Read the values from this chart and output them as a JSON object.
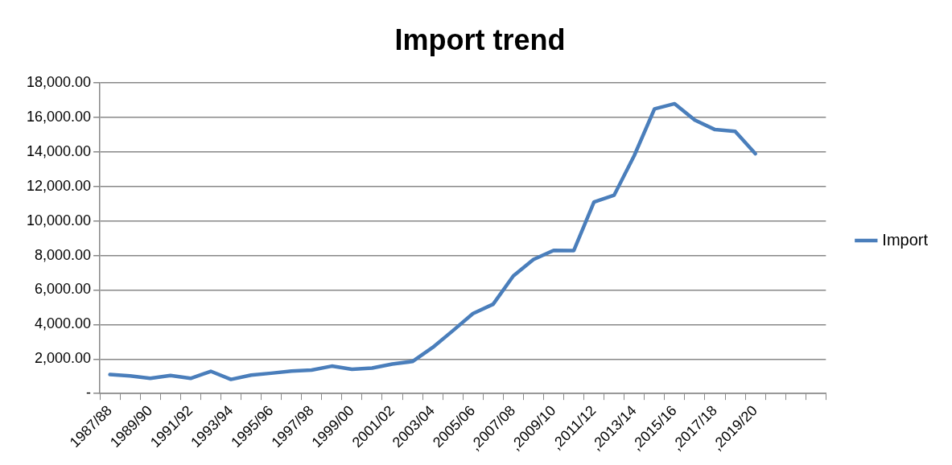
{
  "chart_data": {
    "type": "line",
    "title": "Import trend",
    "categories": [
      "1987/88",
      null,
      "1989/90",
      null,
      "1991/92",
      null,
      "1993/94",
      null,
      "1995/96",
      null,
      "1997/98",
      null,
      "1999/00",
      null,
      "2001/02",
      null,
      "2003/04",
      null,
      "2005/06",
      null,
      ",2007/08",
      null,
      ",2009/10",
      null,
      ",2011/12",
      null,
      ",2013/14",
      null,
      ",2015/16",
      null,
      ",2017/18",
      null,
      ",2019/20",
      null,
      null,
      null
    ],
    "series": [
      {
        "name": "Import",
        "color": "#4a7ebb",
        "values": [
          1100,
          1020,
          880,
          1050,
          880,
          1290,
          820,
          1070,
          1180,
          1300,
          1360,
          1590,
          1410,
          1480,
          1710,
          1860,
          2670,
          3640,
          4640,
          5180,
          6820,
          7770,
          8300,
          8290,
          11100,
          11500,
          13800,
          16500,
          16800,
          15850,
          15300,
          15200,
          13900,
          null,
          null,
          null
        ]
      }
    ],
    "ylim": [
      0,
      18000
    ],
    "yticks": [
      {
        "value": 0,
        "label": "-"
      },
      {
        "value": 2000,
        "label": "2,000.00"
      },
      {
        "value": 4000,
        "label": "4,000.00"
      },
      {
        "value": 6000,
        "label": "6,000.00"
      },
      {
        "value": 8000,
        "label": "8,000.00"
      },
      {
        "value": 10000,
        "label": "10,000.00"
      },
      {
        "value": 12000,
        "label": "12,000.00"
      },
      {
        "value": 14000,
        "label": "14,000.00"
      },
      {
        "value": 16000,
        "label": "16,000.00"
      },
      {
        "value": 18000,
        "label": "18,000.00"
      }
    ],
    "grid": "y",
    "legend": "right",
    "marker": "none",
    "line_style": "solid"
  }
}
